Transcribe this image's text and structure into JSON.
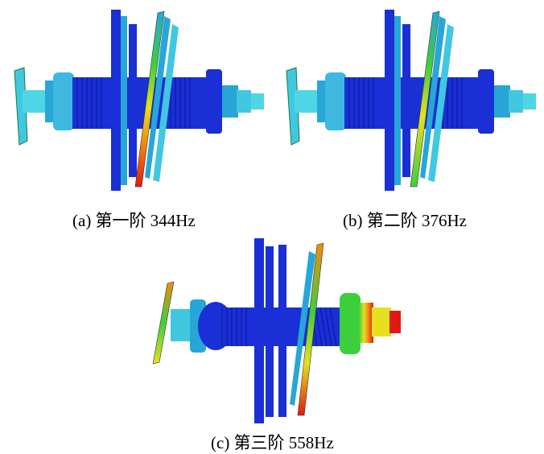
{
  "figure": {
    "panels": [
      {
        "id": "a",
        "caption": "(a)  第一阶 344Hz"
      },
      {
        "id": "b",
        "caption": "(b)  第二阶 376Hz"
      },
      {
        "id": "c",
        "caption": "(c)  第三阶 558Hz"
      }
    ]
  },
  "colors": {
    "shaft_blue": "#1a2fd6",
    "dark_blue": "#0b1aa8",
    "light_cyan": "#3fc8e0",
    "mid_cyan": "#27a6d8",
    "green": "#3ccf3c",
    "yellow": "#e6e020",
    "orange": "#f08a10",
    "red": "#e01a12"
  }
}
